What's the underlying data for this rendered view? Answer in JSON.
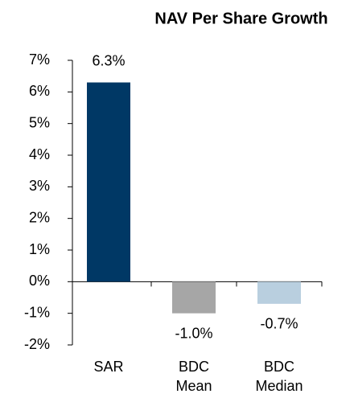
{
  "chart_data": {
    "type": "bar",
    "title": "NAV Per Share Growth",
    "categories": [
      "SAR",
      "BDC Mean",
      "BDC Median"
    ],
    "values": [
      6.3,
      -1.0,
      -0.7
    ],
    "value_labels": [
      "6.3%",
      "-1.0%",
      "-0.7%"
    ],
    "colors": [
      "#003865",
      "#a6a6a6",
      "#b9cfdf"
    ],
    "ylim": [
      -2,
      7
    ],
    "yticks": [
      {
        "value": -2,
        "label": "-2%"
      },
      {
        "value": -1,
        "label": "-1%"
      },
      {
        "value": 0,
        "label": "0%"
      },
      {
        "value": 1,
        "label": "1%"
      },
      {
        "value": 2,
        "label": "2%"
      },
      {
        "value": 3,
        "label": "3%"
      },
      {
        "value": 4,
        "label": "4%"
      },
      {
        "value": 5,
        "label": "5%"
      },
      {
        "value": 6,
        "label": "6%"
      },
      {
        "value": 7,
        "label": "7%"
      }
    ]
  }
}
